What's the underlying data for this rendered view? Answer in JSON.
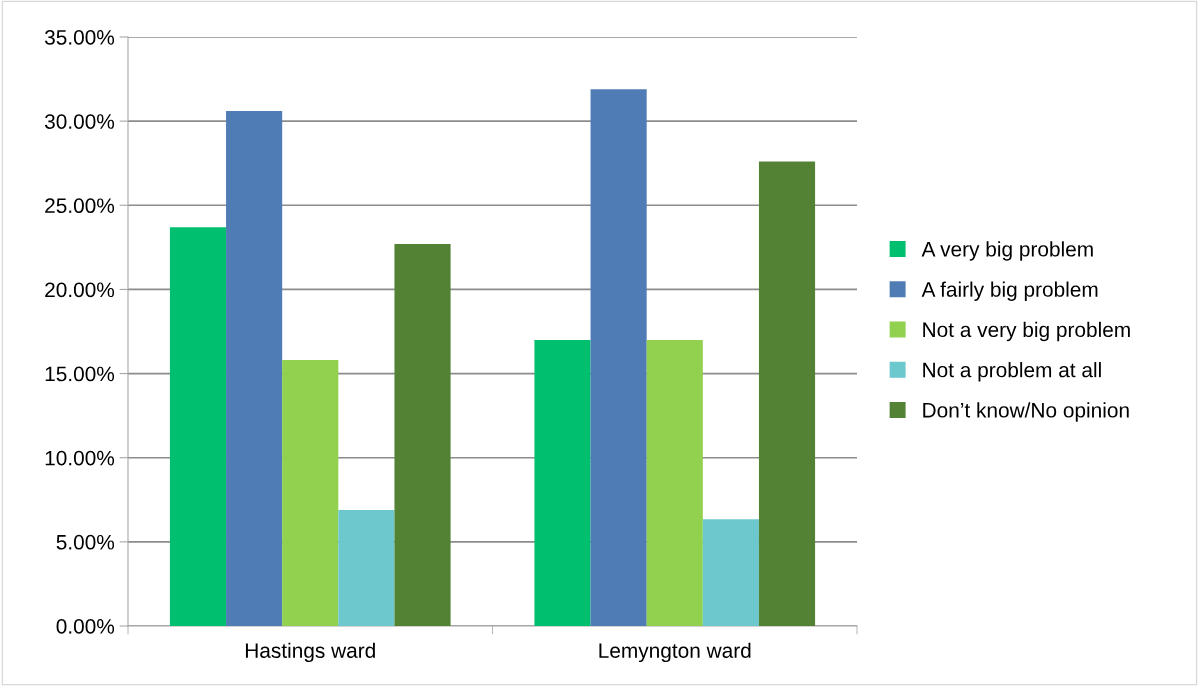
{
  "chart_data": {
    "type": "bar",
    "categories": [
      "Hastings ward",
      "Lemyngton ward"
    ],
    "series": [
      {
        "name": "A very big problem",
        "color": "#00bf6f",
        "values": [
          23.7,
          17.0
        ]
      },
      {
        "name": "A fairly big problem",
        "color": "#4f7cb4",
        "values": [
          30.6,
          31.9
        ]
      },
      {
        "name": "Not a very big problem",
        "color": "#92d050",
        "values": [
          15.8,
          17.0
        ]
      },
      {
        "name": "Not a problem at all",
        "color": "#6cc8cc",
        "values": [
          6.9,
          6.35
        ]
      },
      {
        "name": "Don’t know/No opinion",
        "color": "#538234",
        "values": [
          22.7,
          27.6
        ]
      }
    ],
    "ylim": [
      0,
      35
    ],
    "yticks": [
      {
        "value": 0,
        "label": "0.00%"
      },
      {
        "value": 5,
        "label": "5.00%"
      },
      {
        "value": 10,
        "label": "10.00%"
      },
      {
        "value": 15,
        "label": "15.00%"
      },
      {
        "value": 20,
        "label": "20.00%"
      },
      {
        "value": 25,
        "label": "25.00%"
      },
      {
        "value": 30,
        "label": "30.00%"
      },
      {
        "value": 35,
        "label": "35.00%"
      }
    ],
    "grid": "y",
    "legend": "right"
  }
}
